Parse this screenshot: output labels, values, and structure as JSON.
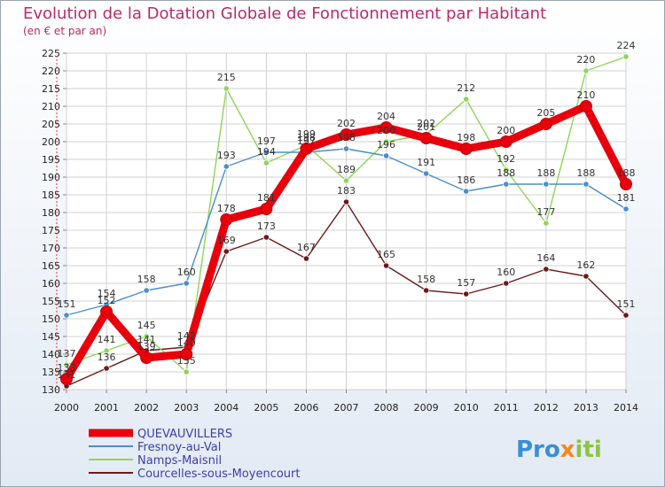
{
  "chart_data": {
    "type": "line",
    "title": "Evolution de la Dotation Globale de Fonctionnement par Habitant",
    "subtitle": "(en € et par an)",
    "xlabel": "",
    "ylabel": "",
    "ylim": [
      130,
      225
    ],
    "ytick_step": 5,
    "grid": true,
    "legend_position": "bottom-left",
    "categories": [
      "2000",
      "2001",
      "2002",
      "2003",
      "2004",
      "2005",
      "2006",
      "2007",
      "2008",
      "2009",
      "2010",
      "2011",
      "2012",
      "2013",
      "2014"
    ],
    "series": [
      {
        "name": "QUEVAUVILLERS",
        "color": "#e8000c",
        "values": [
          133,
          152,
          139,
          140,
          178,
          181,
          198,
          202,
          204,
          201,
          198,
          200,
          205,
          210,
          188
        ]
      },
      {
        "name": "Fresnoy-au-Val",
        "color": "#4a8ec9",
        "values": [
          151,
          154,
          158,
          160,
          193,
          197,
          197,
          198,
          196,
          191,
          186,
          188,
          188,
          188,
          181
        ]
      },
      {
        "name": "Namps-Maisnil",
        "color": "#8fd45a",
        "values": [
          137,
          141,
          145,
          135,
          215,
          194,
          199,
          189,
          200,
          202,
          212,
          192,
          177,
          220,
          224
        ]
      },
      {
        "name": "Courcelles-sous-Moyencourt",
        "color": "#6b1a1a",
        "values": [
          131,
          136,
          141,
          142,
          169,
          173,
          167,
          183,
          165,
          158,
          157,
          160,
          164,
          162,
          151
        ]
      }
    ]
  },
  "brand": {
    "part1": "Pro",
    "part2": "x",
    "part3": "iti"
  }
}
